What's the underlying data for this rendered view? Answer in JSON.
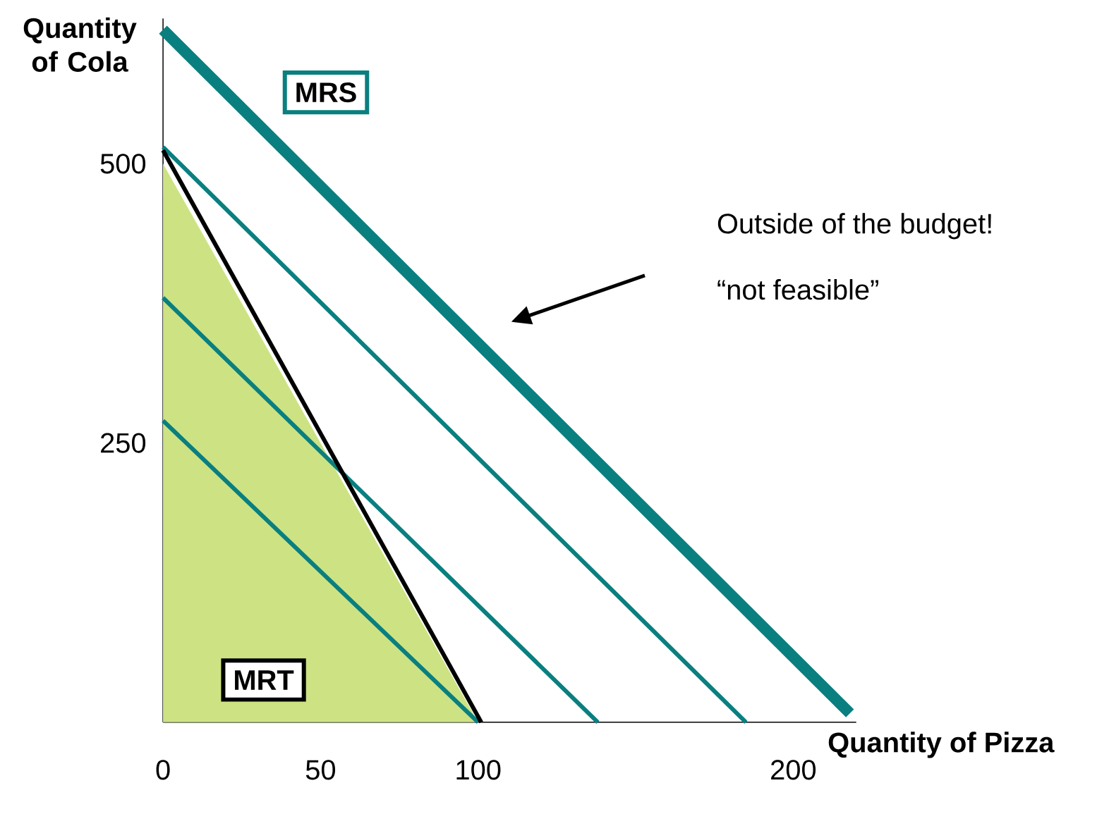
{
  "chart_data": {
    "type": "line",
    "xlabel": "Quantity of Pizza",
    "ylabel": "Quantity of Cola",
    "xlim": [
      0,
      220
    ],
    "ylim": [
      0,
      630
    ],
    "xticks": [
      0,
      50,
      100,
      200
    ],
    "yticks": [
      250,
      500
    ],
    "grid": false,
    "marker": "none",
    "line_style": "solid",
    "series": [
      {
        "type": "area",
        "color": "#cde383",
        "x": [
          0,
          100
        ],
        "values": [
          500,
          0
        ]
      },
      {
        "type": "line",
        "color": "#000000",
        "x": [
          0,
          101
        ],
        "values": [
          512,
          0
        ]
      },
      {
        "type": "line",
        "color": "#0a7f7f",
        "x": [
          0,
          100
        ],
        "values": [
          270,
          0
        ]
      },
      {
        "type": "line",
        "color": "#0a7f7f",
        "x": [
          0,
          138
        ],
        "values": [
          380,
          0
        ]
      },
      {
        "type": "line",
        "color": "#0a7f7f",
        "x": [
          0,
          185
        ],
        "values": [
          515,
          0
        ]
      },
      {
        "type": "line",
        "color": "#0a7f7f",
        "x": [
          0,
          218
        ],
        "values": [
          620,
          8
        ]
      }
    ],
    "annotations": [
      "MRS",
      "MRT",
      "Outside of the budget!",
      "“not feasible”"
    ]
  }
}
